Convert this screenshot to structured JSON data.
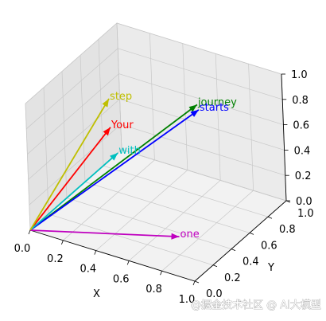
{
  "watermark": "@掘金技术社区 @ AI大模型",
  "chart_data": {
    "type": "quiver3d",
    "axes": {
      "x": {
        "label": "X",
        "lim": [
          0,
          1
        ],
        "ticks": [
          0.0,
          0.2,
          0.4,
          0.6,
          0.8,
          1.0
        ],
        "tick_labels": [
          "0.0",
          "0.2",
          "0.4",
          "0.6",
          "0.8",
          "1.0"
        ]
      },
      "y": {
        "label": "Y",
        "lim": [
          0,
          1
        ],
        "ticks": [
          0.0,
          0.2,
          0.4,
          0.6,
          0.8,
          1.0
        ],
        "tick_labels": [
          "0.0",
          "0.2",
          "0.4",
          "0.6",
          "0.8",
          "1.0"
        ]
      },
      "z": {
        "label": "",
        "lim": [
          0,
          1
        ],
        "ticks": [
          0.0,
          0.2,
          0.4,
          0.6,
          0.8,
          1.0
        ],
        "tick_labels": [
          "0.0",
          "0.2",
          "0.4",
          "0.6",
          "0.8",
          "1.0"
        ]
      }
    },
    "grid": true,
    "origin": [
      0,
      0,
      0
    ],
    "vectors": [
      {
        "label": "Your",
        "color": "#ff0000",
        "x": 0.43,
        "y": 0.15,
        "z": 0.89
      },
      {
        "label": "journey",
        "color": "#008000",
        "x": 0.55,
        "y": 0.87,
        "z": 0.66
      },
      {
        "label": "starts",
        "color": "#0000ff",
        "x": 0.57,
        "y": 0.85,
        "z": 0.64
      },
      {
        "label": "with",
        "color": "#00bfbf",
        "x": 0.22,
        "y": 0.58,
        "z": 0.33
      },
      {
        "label": "one",
        "color": "#bf00bf",
        "x": 0.77,
        "y": 0.25,
        "z": 0.1
      },
      {
        "label": "step",
        "color": "#bfbf00",
        "x": 0.05,
        "y": 0.8,
        "z": 0.55
      }
    ]
  }
}
